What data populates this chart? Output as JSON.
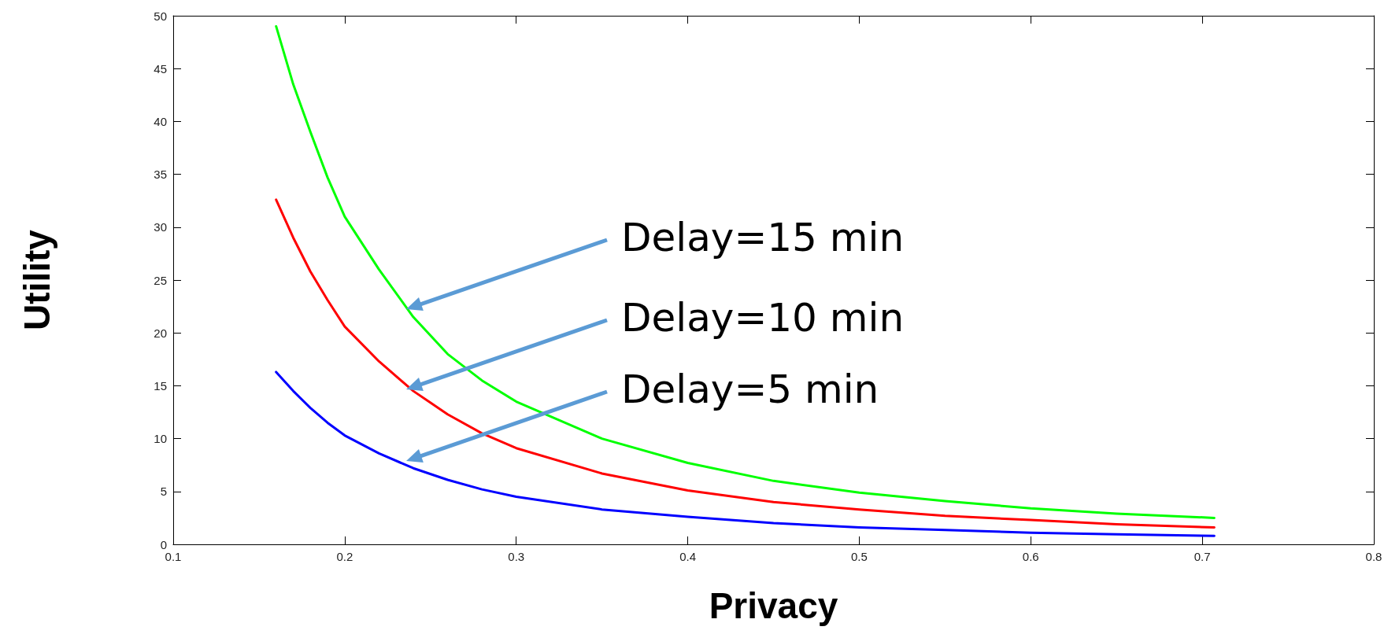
{
  "chart_data": {
    "type": "line",
    "xlabel": "Privacy",
    "ylabel": "Utility",
    "x": [
      0.16,
      0.17,
      0.18,
      0.19,
      0.2,
      0.22,
      0.24,
      0.26,
      0.28,
      0.3,
      0.35,
      0.4,
      0.45,
      0.5,
      0.55,
      0.6,
      0.65,
      0.707
    ],
    "series": [
      {
        "color": "#00ff00",
        "values": [
          49,
          43.5,
          39,
          34.7,
          31,
          26,
          21.5,
          18,
          15.5,
          13.5,
          10,
          7.7,
          6,
          4.9,
          4.1,
          3.4,
          2.9,
          2.5
        ]
      },
      {
        "color": "#ff0000",
        "values": [
          32.6,
          29,
          25.8,
          23.1,
          20.6,
          17.3,
          14.5,
          12.3,
          10.5,
          9.1,
          6.7,
          5.1,
          4,
          3.3,
          2.7,
          2.3,
          1.9,
          1.6
        ]
      },
      {
        "color": "#0000ff",
        "values": [
          16.3,
          14.5,
          12.9,
          11.5,
          10.3,
          8.6,
          7.2,
          6.1,
          5.2,
          4.5,
          3.3,
          2.6,
          2,
          1.6,
          1.35,
          1.1,
          0.95,
          0.8
        ]
      }
    ],
    "xlim": [
      0.1,
      0.8
    ],
    "xticks": [
      0.1,
      0.2,
      0.3,
      0.4,
      0.5,
      0.6,
      0.7,
      0.8
    ],
    "ylim": [
      0,
      50
    ],
    "yticks": [
      0,
      5,
      10,
      15,
      20,
      25,
      30,
      35,
      40,
      45,
      50
    ],
    "grid": false,
    "marker": "none",
    "line_style": "solid",
    "annotations": [
      "Delay=15 min",
      "Delay=10 min",
      "Delay=5 min"
    ]
  }
}
